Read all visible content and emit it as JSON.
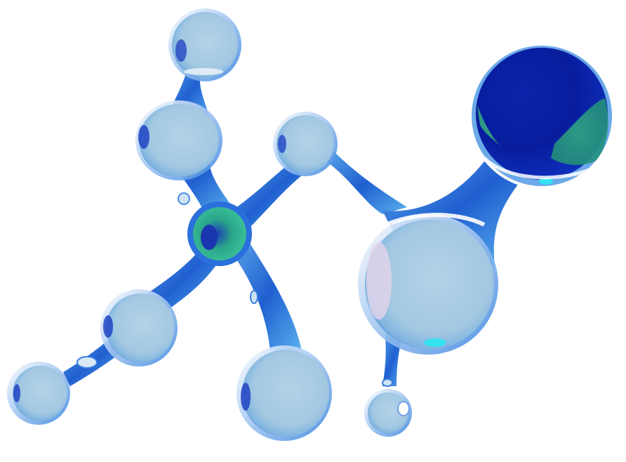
{
  "image": {
    "background": "#ffffff",
    "palette": {
      "deep_blue": "#0a2bb0",
      "mid_blue": "#2f7fe0",
      "pale_blue": "#a8cde3",
      "teal": "#2aa38a",
      "cyan_spec": "#33e3f2"
    },
    "elements": {
      "molecule": "glossy-glass-molecule",
      "atoms": [
        "atom-top",
        "atom-upper-left",
        "atom-center-green",
        "atom-middle",
        "atom-large-dark",
        "atom-large-pale",
        "atom-left",
        "atom-far-left",
        "atom-bottom-center",
        "atom-bottom-small"
      ]
    }
  }
}
